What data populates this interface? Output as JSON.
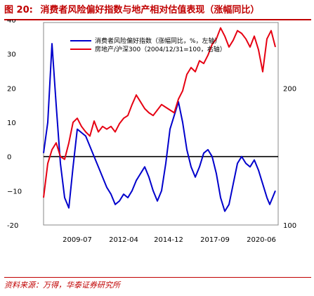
{
  "figure": {
    "label": "图 20:",
    "title": "消费者风险偏好指数与地产相对估值表现（涨幅同比）"
  },
  "source": "资料来源：万得，华泰证券研究所",
  "colors": {
    "left_series": "#0000cc",
    "right_series": "#e60012",
    "title": "#c00000"
  },
  "chart_data": {
    "type": "line",
    "y_left": {
      "ylim": [
        -20,
        40
      ],
      "ticks": [
        -20,
        -10,
        0,
        10,
        20,
        30,
        40
      ],
      "tick_labels": [
        "-20",
        "−10",
        "0",
        "10",
        "20",
        "30",
        "40"
      ]
    },
    "y_right": {
      "ylim": [
        100,
        250
      ],
      "ticks": [
        100,
        200
      ],
      "tick_labels": [
        "100",
        "200"
      ]
    },
    "x_ticks": [
      "2009-07",
      "2012-04",
      "2014-12",
      "2017-09",
      "2020-06"
    ],
    "x_range": [
      "2007-07",
      "2021-06"
    ],
    "grid": false,
    "legend_position": "top-center",
    "series": [
      {
        "name": "消费者风险偏好指数（涨幅同比，%，左轴）",
        "axis": "left",
        "color": "#0000cc",
        "points": [
          [
            "2007-07",
            1
          ],
          [
            "2007-10",
            10
          ],
          [
            "2008-01",
            33
          ],
          [
            "2008-04",
            15
          ],
          [
            "2008-07",
            -2
          ],
          [
            "2008-10",
            -12
          ],
          [
            "2009-01",
            -15
          ],
          [
            "2009-04",
            -3
          ],
          [
            "2009-07",
            8
          ],
          [
            "2009-10",
            7
          ],
          [
            "2010-01",
            6
          ],
          [
            "2010-04",
            3
          ],
          [
            "2010-07",
            0
          ],
          [
            "2010-10",
            -3
          ],
          [
            "2011-01",
            -6
          ],
          [
            "2011-04",
            -9
          ],
          [
            "2011-07",
            -11
          ],
          [
            "2011-10",
            -14
          ],
          [
            "2012-01",
            -13
          ],
          [
            "2012-04",
            -11
          ],
          [
            "2012-07",
            -12
          ],
          [
            "2012-10",
            -10
          ],
          [
            "2013-01",
            -7
          ],
          [
            "2013-04",
            -5
          ],
          [
            "2013-07",
            -3
          ],
          [
            "2013-10",
            -6
          ],
          [
            "2014-01",
            -10
          ],
          [
            "2014-04",
            -13
          ],
          [
            "2014-07",
            -10
          ],
          [
            "2014-10",
            -2
          ],
          [
            "2015-01",
            8
          ],
          [
            "2015-04",
            12
          ],
          [
            "2015-07",
            16
          ],
          [
            "2015-10",
            10
          ],
          [
            "2016-01",
            2
          ],
          [
            "2016-04",
            -3
          ],
          [
            "2016-07",
            -6
          ],
          [
            "2016-10",
            -3
          ],
          [
            "2017-01",
            1
          ],
          [
            "2017-04",
            2
          ],
          [
            "2017-07",
            0
          ],
          [
            "2017-10",
            -5
          ],
          [
            "2018-01",
            -12
          ],
          [
            "2018-04",
            -16
          ],
          [
            "2018-07",
            -14
          ],
          [
            "2018-10",
            -8
          ],
          [
            "2019-01",
            -2
          ],
          [
            "2019-04",
            0
          ],
          [
            "2019-07",
            -2
          ],
          [
            "2019-10",
            -3
          ],
          [
            "2020-01",
            -1
          ],
          [
            "2020-04",
            -4
          ],
          [
            "2020-07",
            -8
          ],
          [
            "2020-10",
            -12
          ],
          [
            "2020-12",
            -14
          ],
          [
            "2021-02",
            -12
          ],
          [
            "2021-04",
            -10
          ]
        ]
      },
      {
        "name": "房地产/沪深300（2004/12/31=100，右轴）",
        "axis": "right",
        "color": "#e60012",
        "points": [
          [
            "2007-07",
            120
          ],
          [
            "2007-10",
            145
          ],
          [
            "2008-01",
            155
          ],
          [
            "2008-04",
            160
          ],
          [
            "2008-07",
            150
          ],
          [
            "2008-10",
            148
          ],
          [
            "2009-01",
            160
          ],
          [
            "2009-04",
            175
          ],
          [
            "2009-07",
            178
          ],
          [
            "2009-10",
            172
          ],
          [
            "2010-01",
            168
          ],
          [
            "2010-04",
            165
          ],
          [
            "2010-07",
            176
          ],
          [
            "2010-10",
            168
          ],
          [
            "2011-01",
            172
          ],
          [
            "2011-04",
            170
          ],
          [
            "2011-07",
            172
          ],
          [
            "2011-10",
            168
          ],
          [
            "2012-01",
            174
          ],
          [
            "2012-04",
            178
          ],
          [
            "2012-07",
            180
          ],
          [
            "2012-10",
            188
          ],
          [
            "2013-01",
            195
          ],
          [
            "2013-04",
            190
          ],
          [
            "2013-07",
            185
          ],
          [
            "2013-10",
            182
          ],
          [
            "2014-01",
            180
          ],
          [
            "2014-04",
            184
          ],
          [
            "2014-07",
            188
          ],
          [
            "2014-10",
            186
          ],
          [
            "2015-01",
            184
          ],
          [
            "2015-04",
            182
          ],
          [
            "2015-07",
            192
          ],
          [
            "2015-10",
            198
          ],
          [
            "2016-01",
            210
          ],
          [
            "2016-04",
            215
          ],
          [
            "2016-07",
            212
          ],
          [
            "2016-10",
            220
          ],
          [
            "2017-01",
            218
          ],
          [
            "2017-04",
            224
          ],
          [
            "2017-07",
            232
          ],
          [
            "2017-10",
            236
          ],
          [
            "2018-01",
            244
          ],
          [
            "2018-04",
            238
          ],
          [
            "2018-07",
            230
          ],
          [
            "2018-10",
            235
          ],
          [
            "2019-01",
            242
          ],
          [
            "2019-04",
            240
          ],
          [
            "2019-07",
            236
          ],
          [
            "2019-10",
            230
          ],
          [
            "2020-01",
            238
          ],
          [
            "2020-04",
            228
          ],
          [
            "2020-07",
            212
          ],
          [
            "2020-10",
            236
          ],
          [
            "2021-01",
            242
          ],
          [
            "2021-04",
            230
          ]
        ]
      }
    ]
  }
}
